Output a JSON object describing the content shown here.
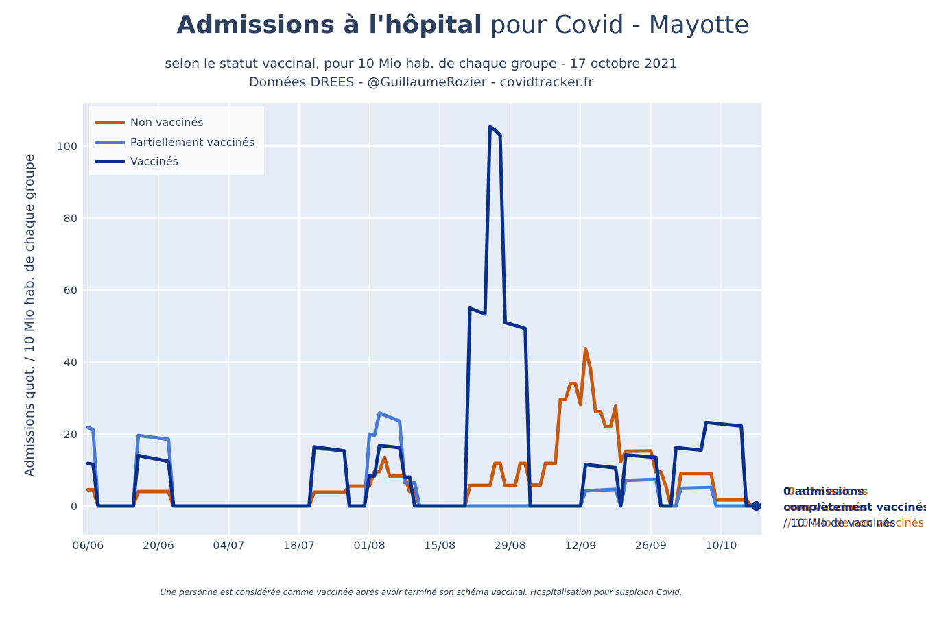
{
  "title": {
    "bold": "Admissions à l'hôpital",
    "rest": " pour Covid - Mayotte"
  },
  "subtitle": {
    "line1": "selon le statut vaccinal, pour 10 Mio hab. de chaque groupe - 17 octobre 2021",
    "line2": "Données DREES - @GuillaumeRozier - covidtracker.fr"
  },
  "footnote": "Une personne est considérée comme vaccinée après avoir terminé son schéma vaccinal. Hospitalisation pour suspicion Covid.",
  "legend": [
    {
      "name": "Non vaccinés",
      "color": "#c55a11"
    },
    {
      "name": "Partiellement vaccinés",
      "color": "#4a7bd6"
    },
    {
      "name": "Vaccinés",
      "color": "#08308a"
    }
  ],
  "annotations": [
    {
      "color": "#c55a11",
      "line1": "0 admissions",
      "line2": "non vaccinés",
      "line3": "/ 10 Mio de non vaccinés"
    },
    {
      "color": "#08308a",
      "line1": "0 admissions",
      "line2": "complètement vaccinés",
      "line3": "/ 10 Mio de vaccinés"
    }
  ],
  "chart_data": {
    "type": "line",
    "ylabel": "Admissions quot. / 10 Mio hab. de chaque groupe",
    "xlabel": "",
    "ylim": [
      -8,
      112
    ],
    "xlim": [
      "2021-06-05",
      "2021-10-18"
    ],
    "yticks": [
      0,
      20,
      40,
      60,
      80,
      100
    ],
    "xticks": [
      {
        "date": "2021-06-06",
        "label": "06/06"
      },
      {
        "date": "2021-06-20",
        "label": "20/06"
      },
      {
        "date": "2021-07-04",
        "label": "04/07"
      },
      {
        "date": "2021-07-18",
        "label": "18/07"
      },
      {
        "date": "2021-08-01",
        "label": "01/08"
      },
      {
        "date": "2021-08-15",
        "label": "15/08"
      },
      {
        "date": "2021-08-29",
        "label": "29/08"
      },
      {
        "date": "2021-09-12",
        "label": "12/09"
      },
      {
        "date": "2021-09-26",
        "label": "26/09"
      },
      {
        "date": "2021-10-10",
        "label": "10/10"
      }
    ],
    "grid": true,
    "legend_position": "top-left",
    "series": [
      {
        "name": "Non vaccinés",
        "color": "#c55a11",
        "points": [
          [
            "2021-06-06",
            4.5
          ],
          [
            "2021-06-07",
            4.5
          ],
          [
            "2021-06-08",
            0
          ],
          [
            "2021-06-15",
            0
          ],
          [
            "2021-06-16",
            4
          ],
          [
            "2021-06-22",
            4
          ],
          [
            "2021-06-23",
            0
          ],
          [
            "2021-07-20",
            0
          ],
          [
            "2021-07-21",
            3.8
          ],
          [
            "2021-07-27",
            3.8
          ],
          [
            "2021-07-28",
            5.5
          ],
          [
            "2021-08-01",
            5.5
          ],
          [
            "2021-08-02",
            9.5
          ],
          [
            "2021-08-03",
            9.5
          ],
          [
            "2021-08-04",
            13.5
          ],
          [
            "2021-08-05",
            8.3
          ],
          [
            "2021-08-08",
            8.3
          ],
          [
            "2021-08-09",
            4
          ],
          [
            "2021-08-10",
            4
          ],
          [
            "2021-08-11",
            0
          ],
          [
            "2021-08-20",
            0
          ],
          [
            "2021-08-21",
            5.7
          ],
          [
            "2021-08-25",
            5.7
          ],
          [
            "2021-08-26",
            11.8
          ],
          [
            "2021-08-27",
            11.8
          ],
          [
            "2021-08-28",
            5.7
          ],
          [
            "2021-08-30",
            5.7
          ],
          [
            "2021-08-31",
            11.8
          ],
          [
            "2021-09-01",
            11.8
          ],
          [
            "2021-09-02",
            5.8
          ],
          [
            "2021-09-04",
            5.8
          ],
          [
            "2021-09-05",
            11.8
          ],
          [
            "2021-09-06",
            11.8
          ],
          [
            "2021-09-07",
            11.8
          ],
          [
            "2021-09-08",
            29.6
          ],
          [
            "2021-09-09",
            29.6
          ],
          [
            "2021-09-10",
            34
          ],
          [
            "2021-09-11",
            34
          ],
          [
            "2021-09-12",
            28.2
          ],
          [
            "2021-09-13",
            43.7
          ],
          [
            "2021-09-14",
            38
          ],
          [
            "2021-09-15",
            26.2
          ],
          [
            "2021-09-16",
            26.2
          ],
          [
            "2021-09-17",
            22
          ],
          [
            "2021-09-18",
            22
          ],
          [
            "2021-09-19",
            27.7
          ],
          [
            "2021-09-20",
            12.3
          ],
          [
            "2021-09-21",
            15.2
          ],
          [
            "2021-09-26",
            15.3
          ],
          [
            "2021-09-27",
            9.4
          ],
          [
            "2021-09-28",
            9.4
          ],
          [
            "2021-09-29",
            5.5
          ],
          [
            "2021-09-30",
            0
          ],
          [
            "2021-10-01",
            0
          ],
          [
            "2021-10-02",
            9
          ],
          [
            "2021-10-08",
            9
          ],
          [
            "2021-10-09",
            1.7
          ],
          [
            "2021-10-15",
            1.7
          ],
          [
            "2021-10-16",
            0
          ],
          [
            "2021-10-17",
            0
          ]
        ]
      },
      {
        "name": "Partiellement vaccinés",
        "color": "#4a7bd6",
        "points": [
          [
            "2021-06-06",
            21.8
          ],
          [
            "2021-06-07",
            21.2
          ],
          [
            "2021-06-08",
            0
          ],
          [
            "2021-06-15",
            0
          ],
          [
            "2021-06-16",
            19.6
          ],
          [
            "2021-06-22",
            18.5
          ],
          [
            "2021-06-23",
            0
          ],
          [
            "2021-07-20",
            0
          ],
          [
            "2021-07-21",
            16
          ],
          [
            "2021-07-24",
            15.7
          ],
          [
            "2021-07-27",
            15.3
          ],
          [
            "2021-07-28",
            0
          ],
          [
            "2021-07-31",
            0
          ],
          [
            "2021-08-01",
            20
          ],
          [
            "2021-08-02",
            19.6
          ],
          [
            "2021-08-03",
            25.8
          ],
          [
            "2021-08-07",
            23.6
          ],
          [
            "2021-08-08",
            6.5
          ],
          [
            "2021-08-10",
            6.5
          ],
          [
            "2021-08-11",
            0
          ],
          [
            "2021-09-12",
            0
          ],
          [
            "2021-09-13",
            4.2
          ],
          [
            "2021-09-19",
            4.6
          ],
          [
            "2021-09-20",
            0
          ],
          [
            "2021-09-21",
            7.1
          ],
          [
            "2021-09-27",
            7.4
          ],
          [
            "2021-09-28",
            0
          ],
          [
            "2021-09-29",
            0
          ],
          [
            "2021-09-30",
            0
          ],
          [
            "2021-10-01",
            0
          ],
          [
            "2021-10-02",
            4.9
          ],
          [
            "2021-10-08",
            5.1
          ],
          [
            "2021-10-09",
            0
          ],
          [
            "2021-10-17",
            0
          ]
        ]
      },
      {
        "name": "Vaccinés",
        "color": "#08308a",
        "points": [
          [
            "2021-06-06",
            11.8
          ],
          [
            "2021-06-07",
            11.5
          ],
          [
            "2021-06-08",
            0
          ],
          [
            "2021-06-15",
            0
          ],
          [
            "2021-06-16",
            14
          ],
          [
            "2021-06-22",
            12.4
          ],
          [
            "2021-06-23",
            0
          ],
          [
            "2021-07-20",
            0
          ],
          [
            "2021-07-21",
            16.4
          ],
          [
            "2021-07-27",
            15.3
          ],
          [
            "2021-07-28",
            0
          ],
          [
            "2021-07-31",
            0
          ],
          [
            "2021-08-01",
            8.3
          ],
          [
            "2021-08-02",
            8.3
          ],
          [
            "2021-08-03",
            16.8
          ],
          [
            "2021-08-07",
            16.2
          ],
          [
            "2021-08-08",
            8
          ],
          [
            "2021-08-09",
            8
          ],
          [
            "2021-08-10",
            0
          ],
          [
            "2021-08-20",
            0
          ],
          [
            "2021-08-21",
            55
          ],
          [
            "2021-08-24",
            53.3
          ],
          [
            "2021-08-25",
            105.3
          ],
          [
            "2021-08-26",
            104.5
          ],
          [
            "2021-08-27",
            103
          ],
          [
            "2021-08-28",
            51
          ],
          [
            "2021-09-01",
            49.3
          ],
          [
            "2021-09-02",
            0
          ],
          [
            "2021-09-12",
            0
          ],
          [
            "2021-09-13",
            11.5
          ],
          [
            "2021-09-19",
            10.6
          ],
          [
            "2021-09-20",
            0
          ],
          [
            "2021-09-21",
            14.2
          ],
          [
            "2021-09-27",
            13.5
          ],
          [
            "2021-09-28",
            0
          ],
          [
            "2021-09-30",
            0
          ],
          [
            "2021-10-01",
            16.2
          ],
          [
            "2021-10-06",
            15.5
          ],
          [
            "2021-10-07",
            23.2
          ],
          [
            "2021-10-14",
            22.2
          ],
          [
            "2021-10-15",
            0
          ],
          [
            "2021-10-17",
            0
          ]
        ]
      }
    ]
  }
}
